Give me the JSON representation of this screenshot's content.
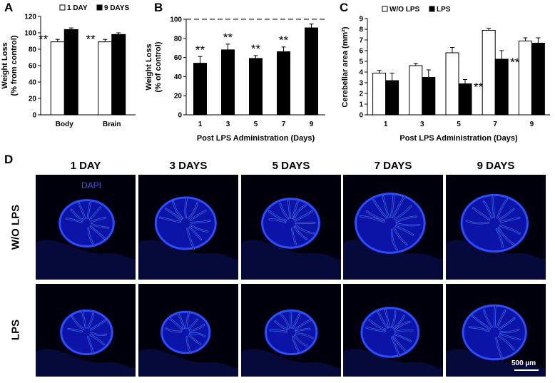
{
  "chart_data": [
    {
      "panel": "A",
      "type": "bar",
      "ylabel": [
        "Weight Loss",
        "(% from control)"
      ],
      "ylim": [
        0,
        120
      ],
      "yticks": [
        0,
        20,
        40,
        60,
        80,
        100,
        120
      ],
      "categories": [
        "Body",
        "Brain"
      ],
      "series": [
        {
          "name": "1 DAY",
          "values": [
            89,
            89
          ],
          "errors": [
            3,
            3
          ],
          "color": "#ffffff"
        },
        {
          "name": "9 DAYS",
          "values": [
            104,
            98
          ],
          "errors": [
            2,
            2
          ],
          "color": "#000000"
        }
      ],
      "annotations": [
        {
          "category": "Body",
          "series": "1 DAY",
          "text": "**"
        },
        {
          "category": "Brain",
          "series": "1 DAY",
          "text": "**"
        }
      ],
      "legend": "top"
    },
    {
      "panel": "B",
      "type": "bar",
      "ylabel": [
        "Weight Loss",
        "(% of control)"
      ],
      "xlabel": "Post LPS  Administration  (Days)",
      "ylim": [
        0,
        100
      ],
      "yticks": [
        0,
        20,
        40,
        60,
        80,
        100
      ],
      "categories": [
        "1",
        "3",
        "5",
        "7",
        "9"
      ],
      "series": [
        {
          "values": [
            54,
            68,
            59,
            66,
            91
          ],
          "errors": [
            7,
            6,
            3,
            5,
            4
          ],
          "color": "#000000"
        }
      ],
      "reference_line": 100,
      "annotations": [
        {
          "category": "1",
          "text": "**"
        },
        {
          "category": "3",
          "text": "**"
        },
        {
          "category": "5",
          "text": "**"
        },
        {
          "category": "7",
          "text": "**"
        }
      ]
    },
    {
      "panel": "C",
      "type": "bar",
      "ylabel": "Cerebellar area (mm²)",
      "xlabel": "Post LPS Administration  (Days)",
      "ylim": [
        0,
        9
      ],
      "yticks": [
        0,
        1,
        2,
        3,
        4,
        5,
        6,
        7,
        8,
        9
      ],
      "categories": [
        "1",
        "3",
        "5",
        "7",
        "9"
      ],
      "series": [
        {
          "name": "W/O LPS",
          "values": [
            3.9,
            4.6,
            5.8,
            7.9,
            6.9
          ],
          "errors": [
            0.25,
            0.2,
            0.5,
            0.2,
            0.3
          ],
          "color": "#ffffff"
        },
        {
          "name": "LPS",
          "values": [
            3.2,
            3.5,
            2.9,
            5.2,
            6.7
          ],
          "errors": [
            0.7,
            0.7,
            0.4,
            0.8,
            0.5
          ],
          "color": "#000000"
        }
      ],
      "annotations": [
        {
          "category": "5",
          "series": "LPS",
          "text": "**"
        },
        {
          "category": "7",
          "series": "LPS",
          "text": "**"
        }
      ],
      "legend": "top-left"
    }
  ],
  "panel_d": {
    "letter": "D",
    "columns": [
      "1 DAY",
      "3 DAYS",
      "5 DAYS",
      "7 DAYS",
      "9 DAYS"
    ],
    "rows": [
      "W/O LPS",
      "LPS"
    ],
    "stain_label": "DAPI",
    "scale_bar": "500 µm",
    "stain_color": "#1a2aff"
  },
  "panel_letters": {
    "a": "A",
    "b": "B",
    "c": "C"
  }
}
